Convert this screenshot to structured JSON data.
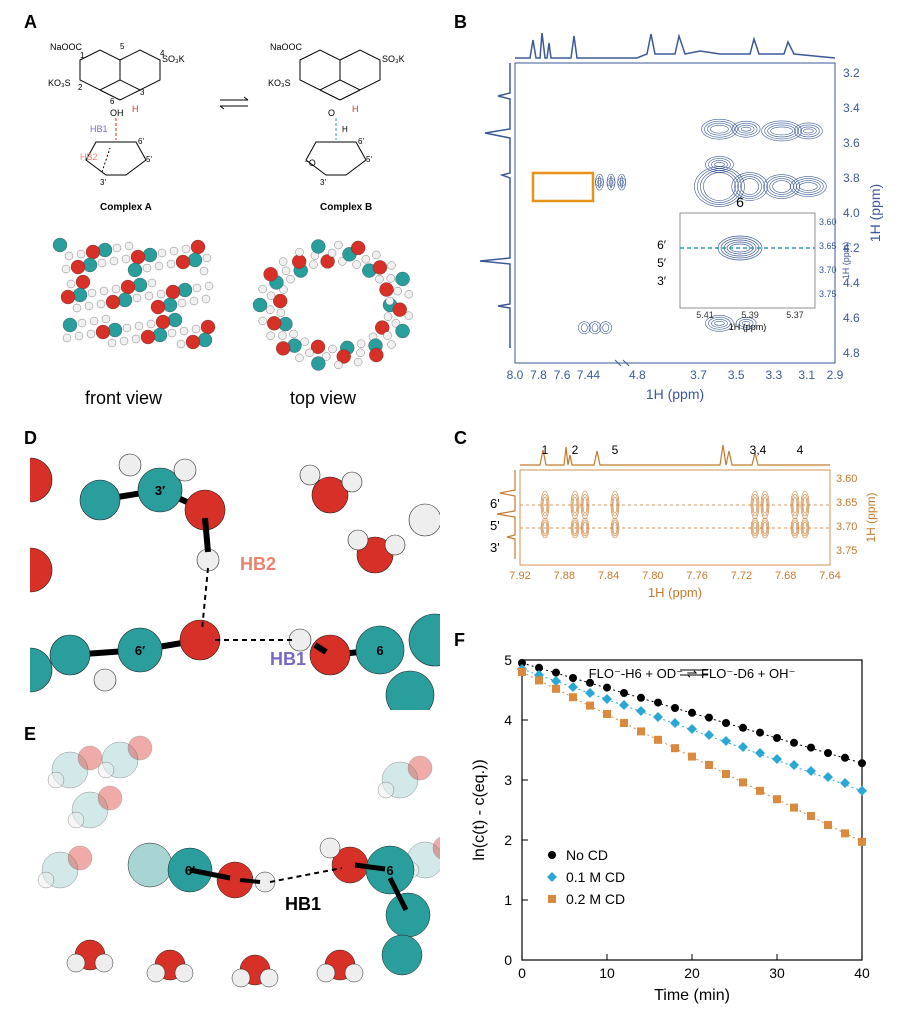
{
  "panelA": {
    "label": "A",
    "complexA_label": "Complex A",
    "complexB_label": "Complex B",
    "front_view": "front view",
    "top_view": "top view",
    "HB1": "HB1",
    "HB2": "HB2",
    "atom_labels": [
      "1",
      "2",
      "3",
      "4",
      "5",
      "6",
      "3'",
      "5'",
      "6'"
    ],
    "chem_labels": [
      "NaOOC",
      "SO₃K",
      "KO₃S",
      "OH",
      "H"
    ],
    "equil_arrow": "⇌",
    "colors": {
      "carbon": "#2a9d9d",
      "oxygen": "#d73027",
      "hydrogen": "#f0f0f0",
      "HB1_text": "#7b68c4",
      "HB2_text": "#e8836f"
    }
  },
  "panelB": {
    "label": "B",
    "xaxis_label": "1H (ppm)",
    "yaxis_label": "1H (ppm)",
    "xticks": [
      "8.0",
      "7.8",
      "7.6",
      "7.44",
      "4.8",
      "3.7",
      "3.5",
      "3.3",
      "3.1",
      "2.9"
    ],
    "yticks": [
      "3.2",
      "3.4",
      "3.6",
      "3.8",
      "4.0",
      "4.2",
      "4.4",
      "4.6",
      "4.8"
    ],
    "line_color": "#3b5998",
    "highlight_box_color": "#e8921c",
    "inset": {
      "xticks": [
        "5.41",
        "5.39",
        "5.37"
      ],
      "yticks": [
        "3.60",
        "3.65",
        "3.70",
        "3.75"
      ],
      "xlabel": "1H (ppm)",
      "ylabel": "1H (ppm)",
      "dash_color": "#2b9bad",
      "peak_labels": [
        "6",
        "6'",
        "5'",
        "3'"
      ]
    }
  },
  "panelC": {
    "label": "C",
    "color": "#c77a2e",
    "xlabel": "1H (ppm)",
    "ylabel": "1H (ppm)",
    "xticks": [
      "7.92",
      "7.88",
      "7.84",
      "7.80",
      "7.76",
      "7.72",
      "7.68",
      "7.64"
    ],
    "yticks": [
      "3.60",
      "3.65",
      "3.70",
      "3.75"
    ],
    "side_labels": [
      "6'",
      "5'",
      "3'"
    ],
    "top_labels": [
      "1",
      "2",
      "5",
      "3,4",
      "4"
    ]
  },
  "panelD": {
    "label": "D",
    "HB1": "HB1",
    "HB2": "HB2",
    "atom_labels": [
      "3'",
      "6",
      "6'"
    ],
    "colors": {
      "carbon": "#2a9d9d",
      "oxygen": "#d73027",
      "hydrogen": "#eeeeee",
      "HB1_text": "#7b68c4",
      "HB2_text": "#e8836f"
    }
  },
  "panelE": {
    "label": "E",
    "HB1": "HB1",
    "atom_labels": [
      "6",
      "6'"
    ],
    "colors": {
      "carbon": "#2a9d9d",
      "carbon_faded": "#a8d4d4",
      "oxygen": "#d73027",
      "hydrogen": "#eeeeee"
    }
  },
  "panelF": {
    "label": "F",
    "type": "scatter-line",
    "xlabel": "Time (min)",
    "ylabel": "ln(c(t) - c(eq.))",
    "xlim": [
      0,
      40
    ],
    "xtick_step": 10,
    "ylim": [
      0,
      5
    ],
    "ytick_step": 1,
    "equation": "FLO⁻-H6 + OD⁻  ⇌  FLO⁻-D6 + OH⁻",
    "legend": [
      {
        "label": "No CD",
        "marker": "circle",
        "color": "#000000"
      },
      {
        "label": "0.1 M CD",
        "marker": "diamond",
        "color": "#2ba7d4"
      },
      {
        "label": "0.2 M CD",
        "marker": "square",
        "color": "#d98a3e"
      }
    ],
    "series": {
      "no_cd": {
        "color": "#000000",
        "marker": "circle",
        "points": [
          [
            0,
            4.95
          ],
          [
            2,
            4.87
          ],
          [
            4,
            4.79
          ],
          [
            6,
            4.7
          ],
          [
            8,
            4.62
          ],
          [
            10,
            4.54
          ],
          [
            12,
            4.45
          ],
          [
            14,
            4.37
          ],
          [
            16,
            4.29
          ],
          [
            18,
            4.2
          ],
          [
            20,
            4.12
          ],
          [
            22,
            4.04
          ],
          [
            24,
            3.95
          ],
          [
            26,
            3.87
          ],
          [
            28,
            3.79
          ],
          [
            30,
            3.7
          ],
          [
            32,
            3.62
          ],
          [
            34,
            3.54
          ],
          [
            36,
            3.45
          ],
          [
            38,
            3.37
          ],
          [
            40,
            3.28
          ]
        ]
      },
      "cd_0_1": {
        "color": "#2ba7d4",
        "marker": "diamond",
        "points": [
          [
            0,
            4.85
          ],
          [
            2,
            4.75
          ],
          [
            4,
            4.65
          ],
          [
            6,
            4.55
          ],
          [
            8,
            4.45
          ],
          [
            10,
            4.35
          ],
          [
            12,
            4.25
          ],
          [
            14,
            4.15
          ],
          [
            16,
            4.05
          ],
          [
            18,
            3.95
          ],
          [
            20,
            3.85
          ],
          [
            22,
            3.75
          ],
          [
            24,
            3.65
          ],
          [
            26,
            3.55
          ],
          [
            28,
            3.45
          ],
          [
            30,
            3.35
          ],
          [
            32,
            3.25
          ],
          [
            34,
            3.15
          ],
          [
            36,
            3.05
          ],
          [
            38,
            2.95
          ],
          [
            40,
            2.82
          ]
        ]
      },
      "cd_0_2": {
        "color": "#d98a3e",
        "marker": "square",
        "points": [
          [
            0,
            4.8
          ],
          [
            2,
            4.66
          ],
          [
            4,
            4.52
          ],
          [
            6,
            4.38
          ],
          [
            8,
            4.24
          ],
          [
            10,
            4.1
          ],
          [
            12,
            3.95
          ],
          [
            14,
            3.81
          ],
          [
            16,
            3.67
          ],
          [
            18,
            3.53
          ],
          [
            20,
            3.39
          ],
          [
            22,
            3.25
          ],
          [
            24,
            3.1
          ],
          [
            26,
            2.96
          ],
          [
            28,
            2.82
          ],
          [
            30,
            2.68
          ],
          [
            32,
            2.54
          ],
          [
            34,
            2.4
          ],
          [
            36,
            2.25
          ],
          [
            38,
            2.11
          ],
          [
            40,
            1.97
          ]
        ]
      }
    },
    "tick_fontsize": 14,
    "label_fontsize": 16,
    "background_color": "#ffffff"
  }
}
